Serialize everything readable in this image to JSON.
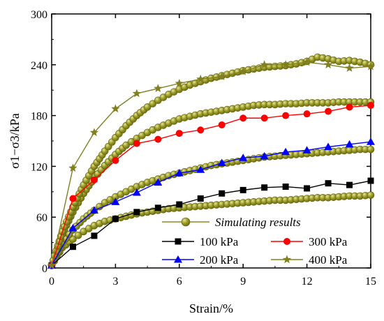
{
  "chart_data": {
    "type": "line",
    "xlabel": "Strain/%",
    "ylabel": "σ1−σ3/kPa",
    "xlim": [
      0,
      15
    ],
    "ylim": [
      0,
      300
    ],
    "xticks": [
      0,
      3,
      6,
      9,
      12,
      15
    ],
    "yticks": [
      0,
      60,
      120,
      180,
      240,
      300
    ],
    "grid": false,
    "legend_placement": "bottom-right",
    "simulated_label": "Simulating results",
    "colors": {
      "simulated": "#8c8c22",
      "simulated_highlight": "#e0e08a",
      "axis": "#000000"
    },
    "series": [
      {
        "name": "100 kPa",
        "color": "#000000",
        "marker": "square",
        "x": [
          0,
          1,
          2,
          3,
          4,
          5,
          6,
          7,
          8,
          9,
          10,
          11,
          12,
          13,
          14,
          15
        ],
        "y": [
          3,
          25,
          38,
          58,
          66,
          71,
          75,
          82,
          88,
          92,
          95,
          96,
          94,
          100,
          98,
          103
        ]
      },
      {
        "name": "300 kPa",
        "color": "#ff0000",
        "marker": "circle",
        "x": [
          0,
          1,
          2,
          3,
          4,
          5,
          6,
          7,
          8,
          9,
          10,
          11,
          12,
          13,
          14,
          15
        ],
        "y": [
          3,
          82,
          104,
          127,
          147,
          152,
          159,
          163,
          169,
          177,
          177,
          180,
          182,
          185,
          190,
          192
        ]
      },
      {
        "name": "200 kPa",
        "color": "#0000ff",
        "marker": "triangle",
        "x": [
          0,
          1,
          2,
          3,
          4,
          5,
          6,
          7,
          8,
          9,
          10,
          11,
          12,
          13,
          14,
          15
        ],
        "y": [
          3,
          47,
          68,
          78,
          89,
          101,
          112,
          116,
          124,
          130,
          132,
          137,
          139,
          143,
          146,
          149
        ]
      },
      {
        "name": "400 kPa",
        "color": "#808020",
        "marker": "star",
        "x": [
          0,
          1,
          2,
          3,
          4,
          5,
          6,
          7,
          8,
          9,
          10,
          11,
          12,
          13,
          14,
          15
        ],
        "y": [
          3,
          118,
          160,
          188,
          206,
          212,
          218,
          223,
          226,
          232,
          240,
          240,
          243,
          240,
          236,
          238
        ]
      }
    ],
    "simulated_series": [
      {
        "name": "100 kPa",
        "x": [
          0,
          0.5,
          1,
          1.5,
          2,
          2.5,
          3,
          3.5,
          4,
          4.5,
          5,
          5.5,
          6,
          6.5,
          7,
          7.5,
          8,
          8.5,
          9,
          9.5,
          10,
          10.5,
          11,
          11.5,
          12,
          12.5,
          13,
          13.5,
          14,
          14.5,
          15
        ],
        "y": [
          3,
          24,
          34,
          43,
          50,
          55,
          58,
          61,
          64,
          66,
          68,
          70,
          71,
          72,
          73,
          74,
          75,
          76,
          77,
          78,
          79,
          80,
          80,
          81,
          82,
          83,
          83,
          84,
          85,
          85,
          86
        ]
      },
      {
        "name": "200 kPa",
        "x": [
          0,
          0.5,
          1,
          1.5,
          2,
          2.5,
          3,
          3.5,
          4,
          4.5,
          5,
          5.5,
          6,
          6.5,
          7,
          7.5,
          8,
          8.5,
          9,
          9.5,
          10,
          10.5,
          11,
          11.5,
          12,
          12.5,
          13,
          13.5,
          14,
          14.5,
          15
        ],
        "y": [
          3,
          29,
          45,
          58,
          68,
          77,
          84,
          90,
          96,
          101,
          105,
          109,
          112,
          115,
          118,
          121,
          123,
          125,
          127,
          129,
          131,
          132,
          133,
          134,
          135,
          136,
          137,
          138,
          139,
          140,
          140
        ]
      },
      {
        "name": "300 kPa",
        "x": [
          0,
          0.5,
          1,
          1.5,
          2,
          2.5,
          3,
          3.5,
          4,
          4.5,
          5,
          5.5,
          6,
          6.5,
          7,
          7.5,
          8,
          8.5,
          9,
          9.5,
          10,
          10.5,
          11,
          11.5,
          12,
          12.5,
          13,
          13.5,
          14,
          14.5,
          15
        ],
        "y": [
          3,
          40,
          66,
          88,
          106,
          121,
          134,
          145,
          153,
          160,
          166,
          171,
          176,
          179,
          182,
          184,
          186,
          188,
          190,
          192,
          193,
          193,
          194,
          194,
          195,
          195,
          195,
          196,
          196,
          196,
          196
        ]
      },
      {
        "name": "400 kPa",
        "x": [
          0,
          0.5,
          1,
          1.5,
          2,
          2.5,
          3,
          3.5,
          4,
          4.5,
          5,
          5.5,
          6,
          6.5,
          7,
          7.5,
          8,
          8.5,
          9,
          9.5,
          10,
          10.5,
          11,
          11.5,
          12,
          12.5,
          13,
          13.5,
          14,
          14.5,
          15
        ],
        "y": [
          3,
          43,
          72,
          98,
          120,
          138,
          154,
          168,
          180,
          190,
          198,
          205,
          211,
          216,
          220,
          224,
          227,
          230,
          233,
          235,
          237,
          238,
          239,
          241,
          244,
          249,
          247,
          244,
          245,
          243,
          240
        ]
      }
    ]
  }
}
